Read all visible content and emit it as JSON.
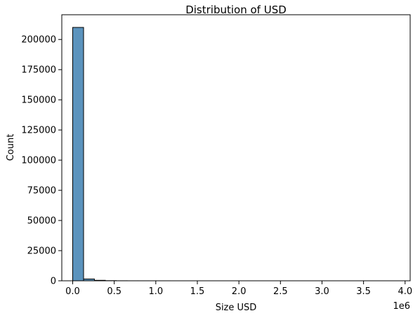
{
  "chart_data": {
    "type": "bar",
    "subtype": "histogram",
    "title": "Distribution of USD",
    "xlabel": "Size USD",
    "ylabel": "Count",
    "x_offset_label": "1e6",
    "x_scale": 1000000,
    "bin_width": 131000,
    "bins": [
      {
        "start": 0,
        "count": 210000
      },
      {
        "start": 131000,
        "count": 1500
      },
      {
        "start": 262000,
        "count": 400
      },
      {
        "start": 393000,
        "count": 120
      },
      {
        "start": 524000,
        "count": 40
      },
      {
        "start": 655000,
        "count": 20
      },
      {
        "start": 786000,
        "count": 10
      },
      {
        "start": 917000,
        "count": 5
      },
      {
        "start": 1048000,
        "count": 3
      },
      {
        "start": 1179000,
        "count": 2
      },
      {
        "start": 1310000,
        "count": 1
      },
      {
        "start": 1441000,
        "count": 1
      },
      {
        "start": 1572000,
        "count": 1
      },
      {
        "start": 1703000,
        "count": 1
      },
      {
        "start": 1834000,
        "count": 1
      },
      {
        "start": 1965000,
        "count": 1
      },
      {
        "start": 2096000,
        "count": 1
      },
      {
        "start": 2227000,
        "count": 1
      },
      {
        "start": 2358000,
        "count": 1
      },
      {
        "start": 2489000,
        "count": 1
      },
      {
        "start": 2620000,
        "count": 1
      },
      {
        "start": 2751000,
        "count": 1
      },
      {
        "start": 2882000,
        "count": 1
      },
      {
        "start": 3013000,
        "count": 1
      },
      {
        "start": 3144000,
        "count": 1
      },
      {
        "start": 3275000,
        "count": 1
      },
      {
        "start": 3406000,
        "count": 1
      },
      {
        "start": 3537000,
        "count": 1
      },
      {
        "start": 3668000,
        "count": 1
      },
      {
        "start": 3799000,
        "count": 1
      }
    ],
    "xlim": [
      -131000,
      4061000
    ],
    "ylim": [
      0,
      220500
    ],
    "x_ticks": [
      0,
      500000,
      1000000,
      1500000,
      2000000,
      2500000,
      3000000,
      3500000,
      4000000
    ],
    "x_tick_labels": [
      "0.0",
      "0.5",
      "1.0",
      "1.5",
      "2.0",
      "2.5",
      "3.0",
      "3.5",
      "4.0"
    ],
    "y_ticks": [
      0,
      25000,
      50000,
      75000,
      100000,
      125000,
      150000,
      175000,
      200000
    ],
    "y_tick_labels": [
      "0",
      "25000",
      "50000",
      "75000",
      "100000",
      "125000",
      "150000",
      "175000",
      "200000"
    ],
    "grid": false,
    "colors": {
      "bar_fill": "#5b93bd",
      "bar_edge": "#000000",
      "axis": "#000000",
      "background": "#ffffff"
    }
  }
}
